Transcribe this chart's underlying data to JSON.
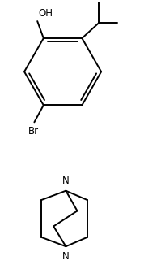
{
  "bg_color": "#ffffff",
  "line_color": "#000000",
  "line_width": 1.4,
  "font_size_label": 8.5,
  "OH_label": "OH",
  "Br_label": "Br",
  "N_label": "N",
  "fig_width": 1.78,
  "fig_height": 3.26,
  "dpi": 100
}
